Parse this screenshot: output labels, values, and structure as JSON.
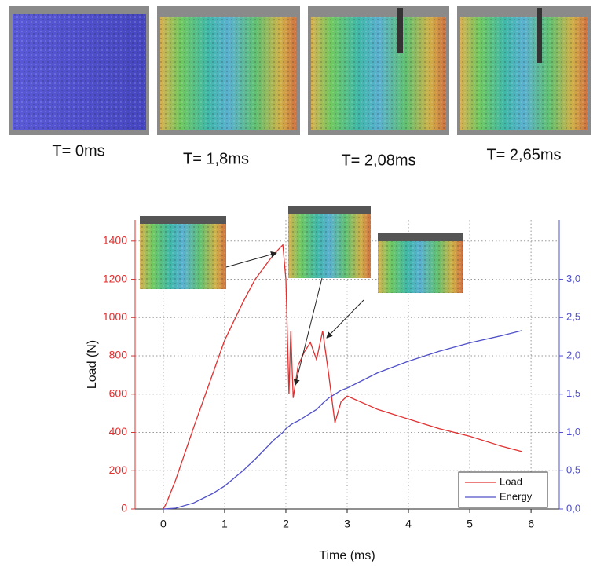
{
  "snapshots": [
    {
      "label": "T= 0ms"
    },
    {
      "label": "T= 1,8ms"
    },
    {
      "label": "T= 2,08ms"
    },
    {
      "label": "T= 2,65ms"
    }
  ],
  "chart_data": {
    "type": "line",
    "x_label": "Time (ms)",
    "y_label": "Load (N)",
    "x": [
      0,
      0.05,
      0.2,
      0.5,
      0.8,
      1.0,
      1.3,
      1.5,
      1.8,
      1.95,
      2.0,
      2.05,
      2.08,
      2.12,
      2.2,
      2.3,
      2.4,
      2.5,
      2.6,
      2.7,
      2.8,
      2.9,
      3.0,
      3.5,
      4.0,
      4.5,
      5.0,
      5.5,
      5.85
    ],
    "series": [
      {
        "name": "Load",
        "color": "#e03030",
        "values": [
          0,
          30,
          150,
          430,
          700,
          880,
          1080,
          1200,
          1330,
          1380,
          1200,
          600,
          930,
          580,
          750,
          820,
          870,
          780,
          930,
          700,
          450,
          560,
          590,
          520,
          470,
          420,
          380,
          330,
          300
        ]
      },
      {
        "name": "Energy",
        "color": "#5050c8",
        "axis": "y2",
        "values": [
          0,
          0.002,
          0.01,
          0.08,
          0.2,
          0.3,
          0.5,
          0.65,
          0.9,
          1.0,
          1.05,
          1.08,
          1.1,
          1.12,
          1.15,
          1.2,
          1.25,
          1.3,
          1.38,
          1.45,
          1.5,
          1.55,
          1.58,
          1.78,
          1.93,
          2.06,
          2.17,
          2.26,
          2.33
        ]
      }
    ],
    "xlim": [
      -0.46,
      6.46
    ],
    "xticks": [
      0,
      1,
      2,
      3,
      4,
      5,
      6
    ],
    "ylim": [
      0,
      1510
    ],
    "yticks": [
      0,
      200,
      400,
      600,
      800,
      1000,
      1200,
      1400
    ],
    "y2lim": [
      0,
      3.775
    ],
    "y2ticks": [
      {
        "value": 0,
        "label": "0,0"
      },
      {
        "value": 0.5,
        "label": "0,5"
      },
      {
        "value": 1,
        "label": "1,0"
      },
      {
        "value": 1.5,
        "label": "1,5"
      },
      {
        "value": 2,
        "label": "2,0"
      },
      {
        "value": 2.5,
        "label": "2,5"
      },
      {
        "value": 3,
        "label": "3,0"
      }
    ],
    "grid": true,
    "legend": "lower right"
  }
}
